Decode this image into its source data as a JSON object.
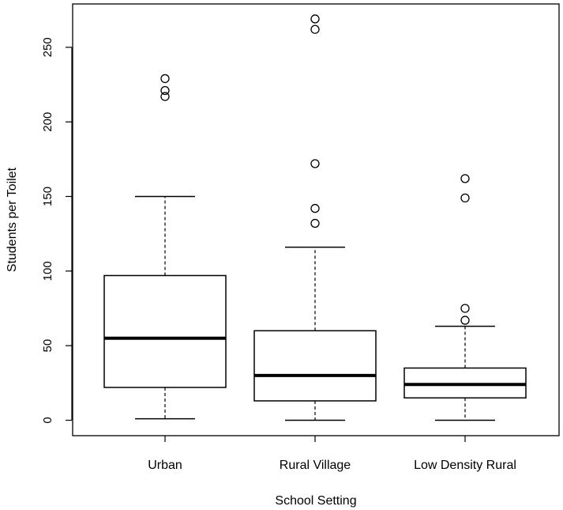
{
  "chart_data": {
    "type": "boxplot",
    "title": "",
    "xlabel": "School Setting",
    "ylabel": "Students per Toilet",
    "ylim": [
      -10,
      280
    ],
    "yticks": [
      0,
      50,
      100,
      150,
      200,
      250
    ],
    "yticklabels": [
      "0",
      "50",
      "100",
      "150",
      "200",
      "250"
    ],
    "grid": false,
    "legend": "none",
    "categories": [
      "Urban",
      "Rural Village",
      "Low Density Rural"
    ],
    "boxes": [
      {
        "name": "Urban",
        "min": 1,
        "q1": 22,
        "median": 55,
        "q3": 97,
        "max": 150,
        "outliers": [
          217,
          221,
          229
        ]
      },
      {
        "name": "Rural Village",
        "min": 0,
        "q1": 13,
        "median": 30,
        "q3": 60,
        "max": 116,
        "outliers": [
          132,
          142,
          172,
          262,
          269
        ]
      },
      {
        "name": "Low Density Rural",
        "min": 0,
        "q1": 15,
        "median": 24,
        "q3": 35,
        "max": 63,
        "outliers": [
          67,
          75,
          149,
          162
        ]
      }
    ]
  }
}
